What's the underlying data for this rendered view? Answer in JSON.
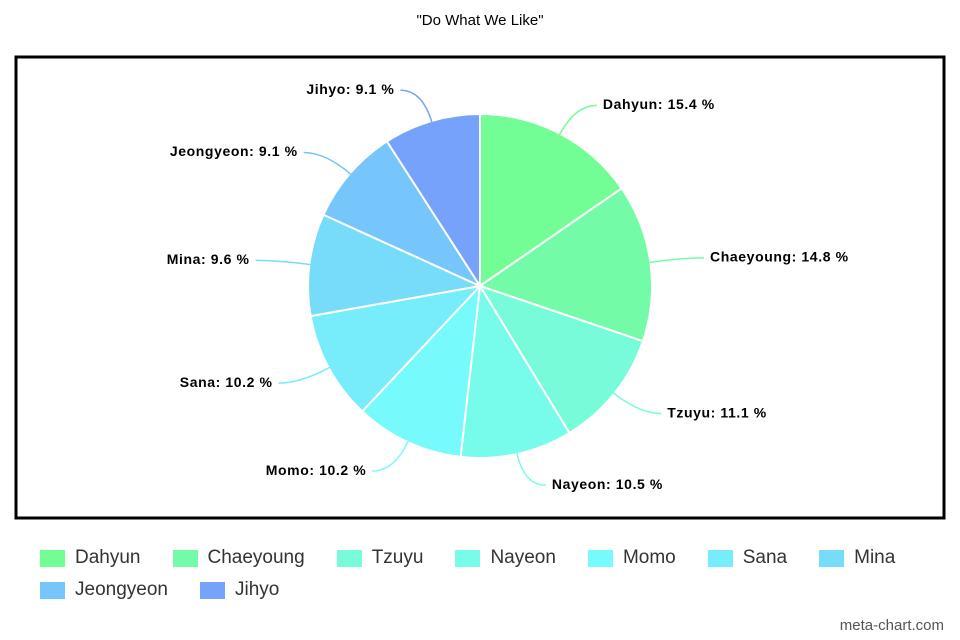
{
  "chart_data": {
    "type": "pie",
    "title": "\"Do What We Like\"",
    "categories": [
      "Dahyun",
      "Chaeyoung",
      "Tzuyu",
      "Nayeon",
      "Momo",
      "Sana",
      "Mina",
      "Jeongyeon",
      "Jihyo"
    ],
    "values": [
      15.4,
      14.8,
      11.1,
      10.5,
      10.2,
      10.2,
      9.6,
      9.1,
      9.1
    ],
    "value_labels": [
      "Dahyun: 15.4 %",
      "Chaeyoung: 14.8 %",
      "Tzuyu: 11.1 %",
      "Nayeon: 10.5 %",
      "Momo: 10.2 %",
      "Sana: 10.2 %",
      "Mina: 9.6 %",
      "Jeongyeon: 9.1 %",
      "Jihyo: 9.1 %"
    ],
    "colors": [
      "#73fe95",
      "#73fba8",
      "#77fbd9",
      "#77fbea",
      "#77fafb",
      "#77edfb",
      "#77dcfa",
      "#77c6fb",
      "#77a2fb"
    ],
    "watermark": "meta-chart.com"
  }
}
